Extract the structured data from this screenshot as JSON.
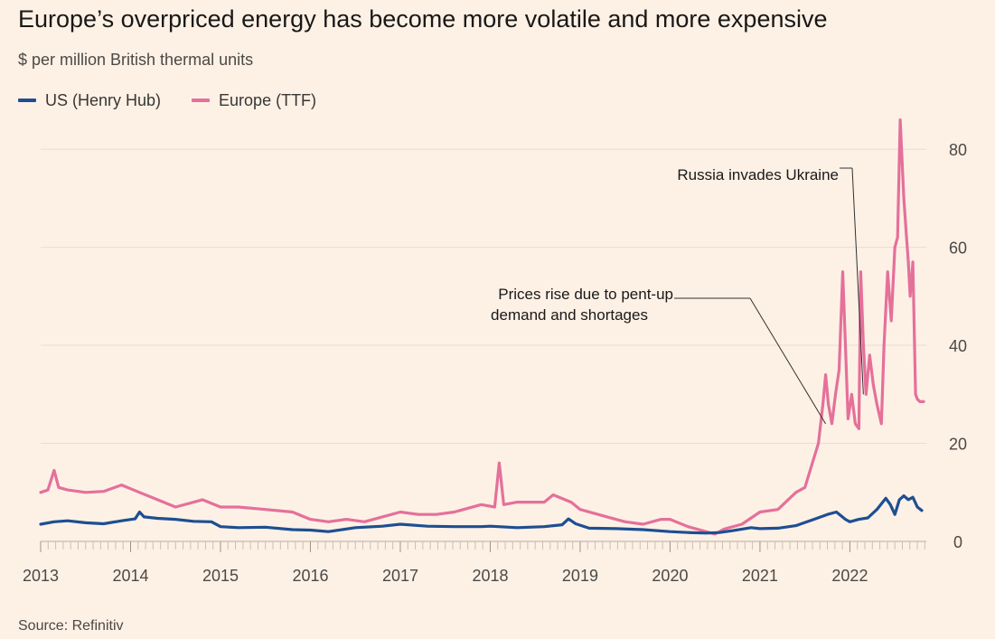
{
  "title": "Europe’s overpriced energy has become more volatile and more expensive",
  "subtitle": "$ per million British thermal units",
  "source": "Source: Refinitiv",
  "chart_data": {
    "type": "line",
    "title": "Europe’s overpriced energy has become more volatile and more expensive",
    "ylabel": "$ per million British thermal units",
    "xlabel": "",
    "xlim": [
      2013.0,
      2022.85
    ],
    "ylim": [
      0,
      85
    ],
    "y_ticks": [
      0,
      20,
      40,
      60,
      80
    ],
    "x_ticks": [
      2013,
      2014,
      2015,
      2016,
      2017,
      2018,
      2019,
      2020,
      2021,
      2022
    ],
    "x_tick_labels": [
      "2013",
      "2014",
      "2015",
      "2016",
      "2017",
      "2018",
      "2019",
      "2020",
      "2021",
      "2022"
    ],
    "grid": true,
    "legend_position": "top-left",
    "series": [
      {
        "name": "US (Henry Hub)",
        "color": "#1d4f91",
        "x": [
          2013.0,
          2013.15,
          2013.3,
          2013.5,
          2013.7,
          2013.9,
          2014.05,
          2014.1,
          2014.15,
          2014.3,
          2014.5,
          2014.7,
          2014.9,
          2015.0,
          2015.2,
          2015.5,
          2015.8,
          2016.0,
          2016.2,
          2016.5,
          2016.8,
          2017.0,
          2017.3,
          2017.6,
          2017.9,
          2018.0,
          2018.3,
          2018.6,
          2018.8,
          2018.87,
          2018.95,
          2019.1,
          2019.4,
          2019.7,
          2020.0,
          2020.2,
          2020.4,
          2020.55,
          2020.7,
          2020.9,
          2021.0,
          2021.2,
          2021.4,
          2021.6,
          2021.75,
          2021.85,
          2021.95,
          2022.0,
          2022.1,
          2022.2,
          2022.3,
          2022.4,
          2022.45,
          2022.5,
          2022.55,
          2022.6,
          2022.65,
          2022.7,
          2022.75,
          2022.8
        ],
        "values": [
          3.5,
          4.0,
          4.2,
          3.8,
          3.6,
          4.2,
          4.6,
          6.0,
          5.0,
          4.7,
          4.5,
          4.1,
          4.0,
          3.0,
          2.8,
          2.9,
          2.4,
          2.3,
          2.0,
          2.8,
          3.1,
          3.5,
          3.1,
          3.0,
          3.0,
          3.1,
          2.8,
          3.0,
          3.4,
          4.6,
          3.6,
          2.7,
          2.6,
          2.4,
          2.0,
          1.8,
          1.7,
          1.8,
          2.2,
          2.8,
          2.6,
          2.7,
          3.2,
          4.5,
          5.5,
          6.0,
          4.5,
          4.0,
          4.5,
          4.8,
          6.5,
          8.8,
          7.5,
          5.5,
          8.5,
          9.3,
          8.5,
          9.0,
          7.0,
          6.3
        ]
      },
      {
        "name": "Europe (TTF)",
        "color": "#e5709a",
        "x": [
          2013.0,
          2013.08,
          2013.15,
          2013.2,
          2013.3,
          2013.5,
          2013.7,
          2013.9,
          2014.1,
          2014.3,
          2014.5,
          2014.8,
          2015.0,
          2015.2,
          2015.5,
          2015.8,
          2016.0,
          2016.2,
          2016.4,
          2016.6,
          2016.8,
          2017.0,
          2017.2,
          2017.4,
          2017.6,
          2017.9,
          2018.05,
          2018.1,
          2018.15,
          2018.3,
          2018.6,
          2018.7,
          2018.9,
          2019.0,
          2019.3,
          2019.5,
          2019.7,
          2019.9,
          2020.0,
          2020.2,
          2020.4,
          2020.5,
          2020.6,
          2020.8,
          2021.0,
          2021.2,
          2021.4,
          2021.5,
          2021.6,
          2021.65,
          2021.7,
          2021.73,
          2021.76,
          2021.8,
          2021.84,
          2021.88,
          2021.92,
          2021.95,
          2021.98,
          2022.02,
          2022.06,
          2022.1,
          2022.12,
          2022.15,
          2022.18,
          2022.22,
          2022.26,
          2022.3,
          2022.35,
          2022.38,
          2022.42,
          2022.46,
          2022.5,
          2022.53,
          2022.56,
          2022.6,
          2022.63,
          2022.65,
          2022.67,
          2022.7,
          2022.73,
          2022.75,
          2022.78,
          2022.82
        ],
        "values": [
          10.0,
          10.5,
          14.5,
          11.0,
          10.5,
          10.0,
          10.2,
          11.5,
          10.0,
          8.5,
          7.0,
          8.5,
          7.0,
          7.0,
          6.5,
          6.0,
          4.5,
          4.0,
          4.5,
          4.0,
          5.0,
          6.0,
          5.5,
          5.5,
          6.0,
          7.5,
          7.0,
          16.0,
          7.5,
          8.0,
          8.0,
          9.5,
          8.0,
          6.5,
          5.0,
          4.0,
          3.5,
          4.5,
          4.5,
          3.0,
          2.0,
          1.5,
          2.5,
          3.5,
          6.0,
          6.5,
          10.0,
          11.0,
          17.0,
          20.0,
          28.0,
          34.0,
          28.0,
          24.0,
          30.0,
          35.0,
          55.0,
          40.0,
          25.0,
          30.0,
          24.0,
          23.0,
          55.0,
          40.0,
          30.0,
          38.0,
          32.0,
          28.0,
          24.0,
          40.0,
          55.0,
          45.0,
          60.0,
          62.0,
          86.0,
          70.0,
          62.0,
          57.0,
          50.0,
          57.0,
          30.0,
          29.0,
          28.5,
          28.5
        ]
      }
    ],
    "annotations": [
      {
        "text": "Russia invades Ukraine",
        "x": 2022.15,
        "y": 30.0
      },
      {
        "text_lines": [
          "Prices rise due to pent-up",
          "demand and shortages"
        ],
        "x": 2021.73,
        "y": 24.0
      }
    ]
  }
}
